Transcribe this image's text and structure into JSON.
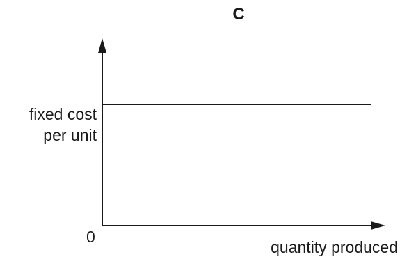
{
  "chart_data": {
    "type": "line",
    "title": "C",
    "xlabel": "quantity produced",
    "ylabel": [
      "fixed cost",
      "per unit"
    ],
    "origin_label": "0",
    "grid": false,
    "series": [
      {
        "values": [
          1,
          1
        ]
      }
    ],
    "x": [
      0,
      1
    ],
    "xlim": [
      0,
      1
    ],
    "ylim": [
      0,
      1.3
    ]
  },
  "colors": {
    "axis": "#1a1a1a",
    "line": "#1a1a1a"
  }
}
